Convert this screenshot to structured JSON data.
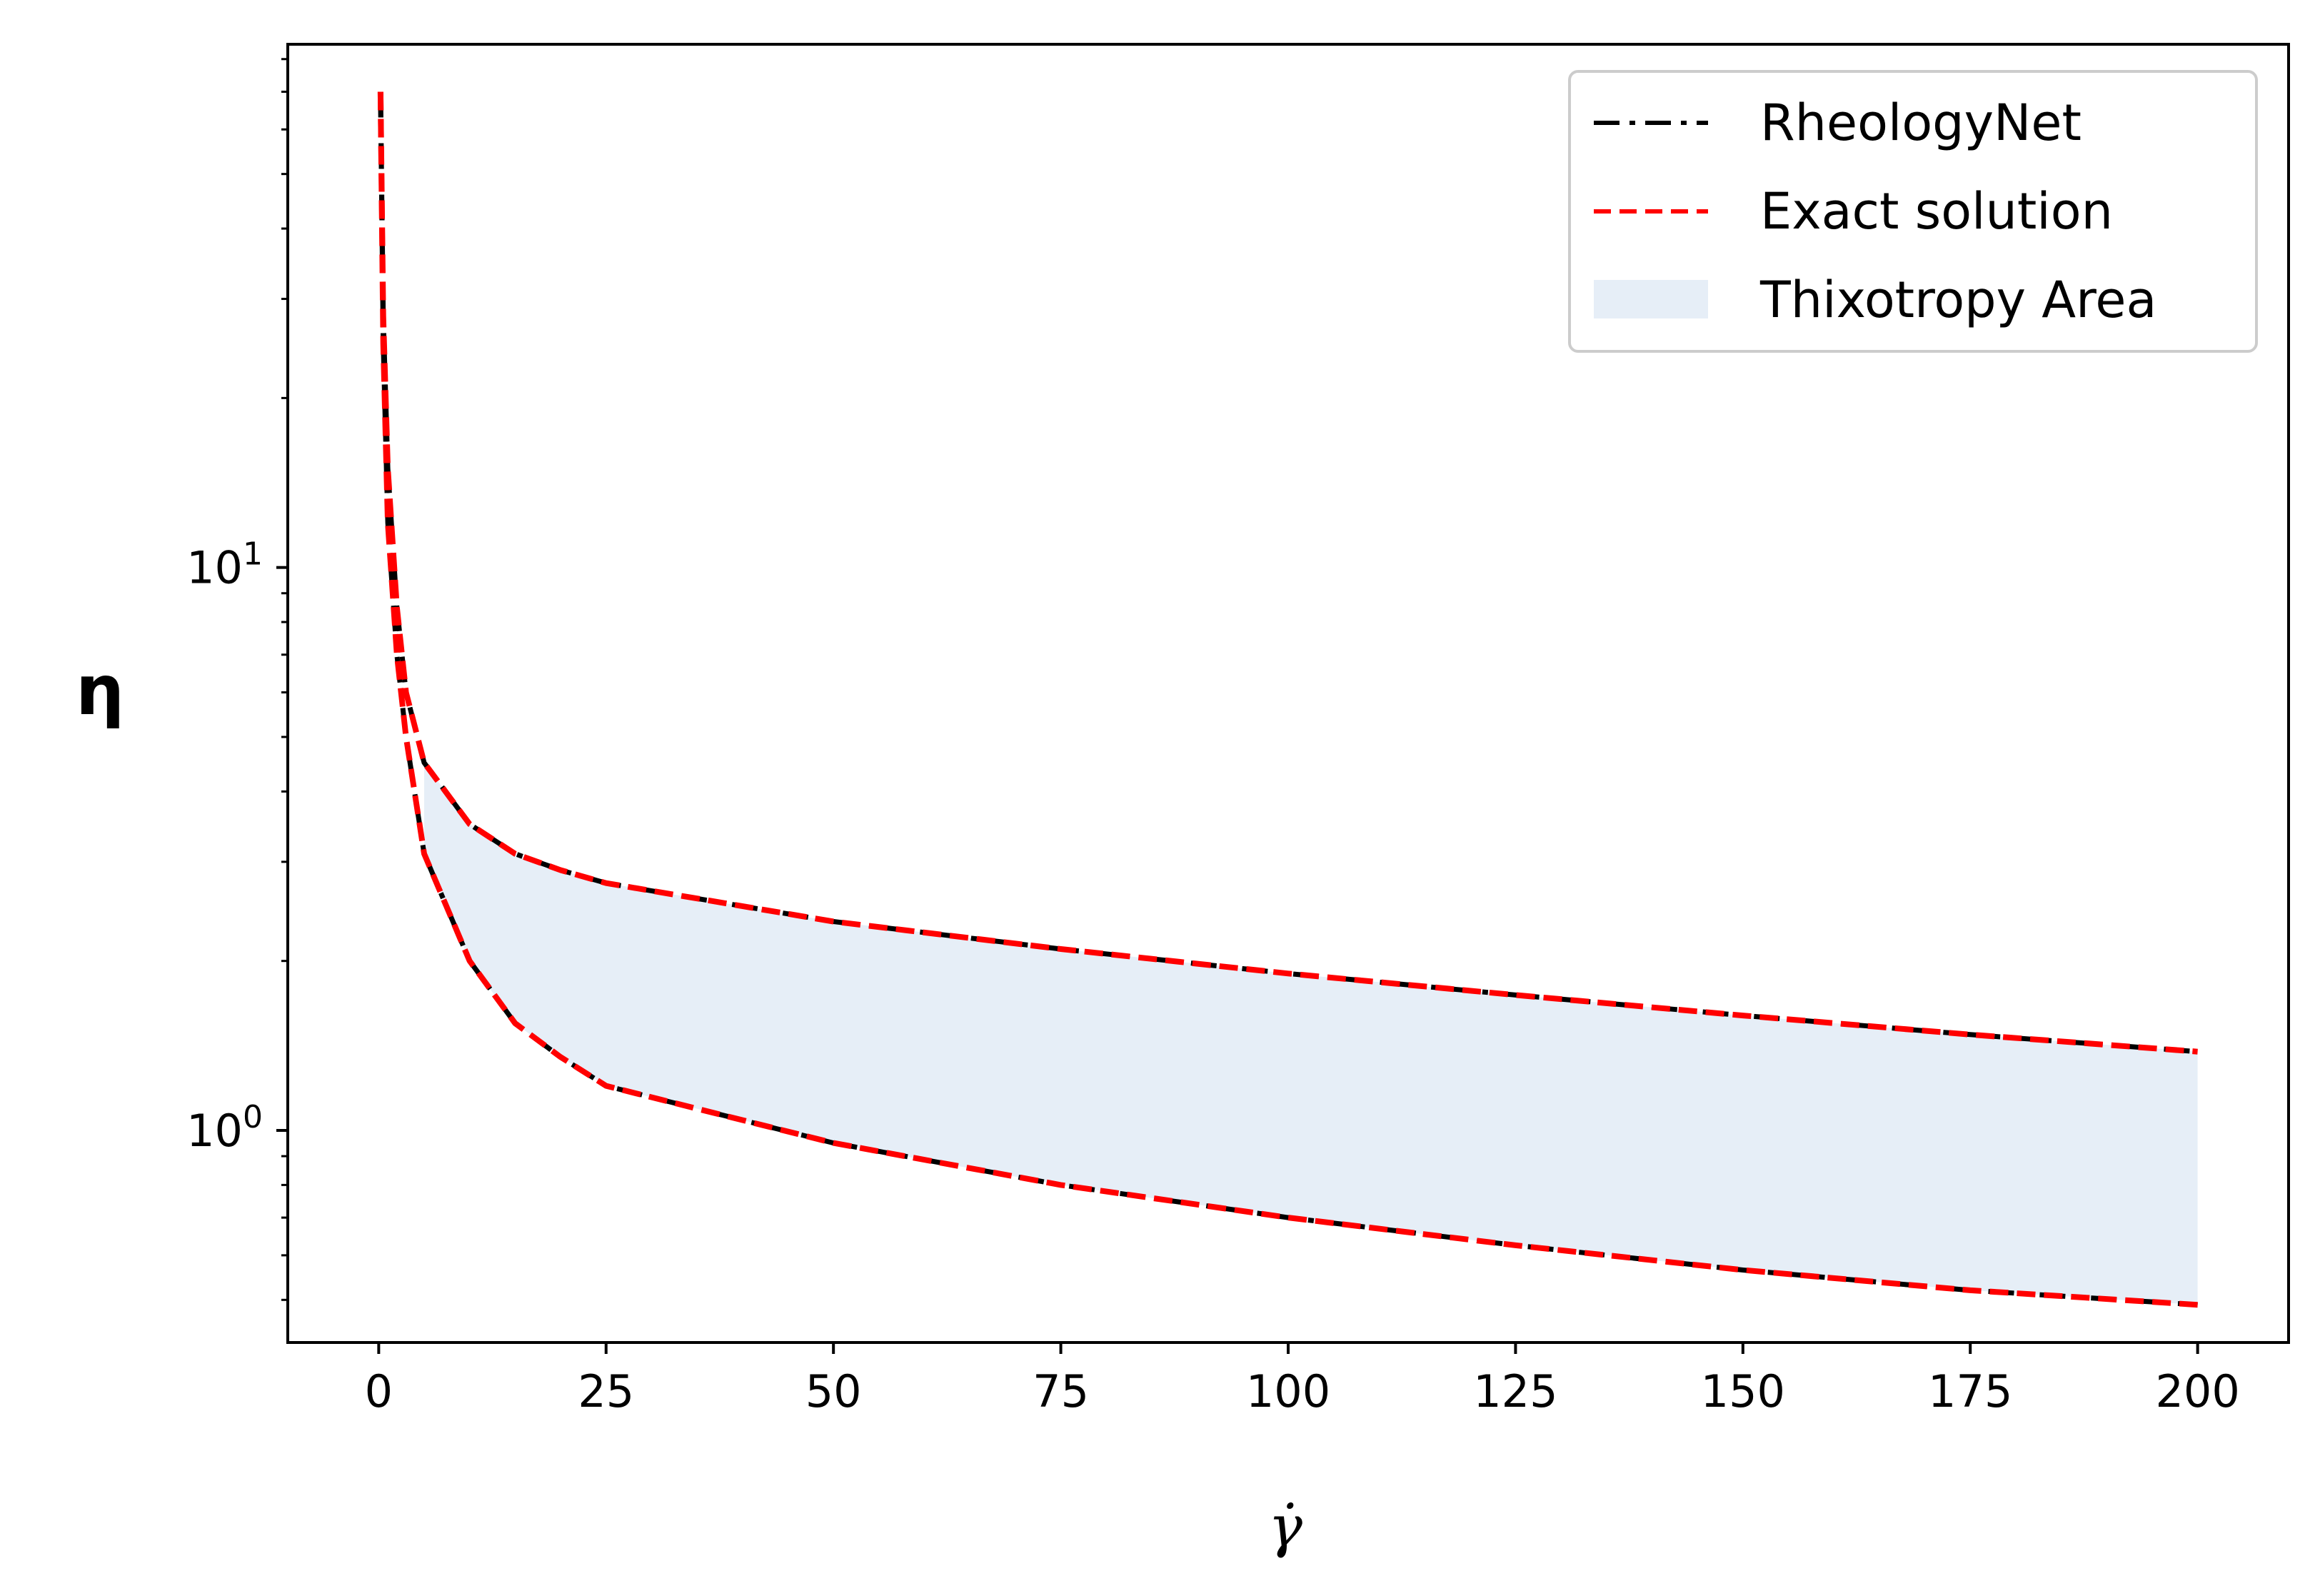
{
  "chart_data": {
    "type": "line",
    "title": "",
    "xlabel": "γ̇",
    "ylabel": "η",
    "x_scale": "linear",
    "y_scale": "log",
    "xlim": [
      -10,
      210
    ],
    "ylim": [
      0.42,
      85
    ],
    "x_ticks": [
      0,
      25,
      50,
      75,
      100,
      125,
      150,
      175,
      200
    ],
    "y_major_ticks": [
      {
        "value": 1,
        "base": "10",
        "exp": "0"
      },
      {
        "value": 10,
        "base": "10",
        "exp": "1"
      }
    ],
    "grid": false,
    "legend_position": "upper-right",
    "legend": [
      {
        "label": "RheologyNet",
        "style": "dash-dot",
        "color": "#000000"
      },
      {
        "label": "Exact solution",
        "style": "dashed",
        "color": "#ff0000"
      },
      {
        "label": "Thixotropy Area",
        "style": "fill",
        "color": "#e6eef7"
      }
    ],
    "series": [
      {
        "name": "RheologyNet",
        "style": "dash-dot",
        "color": "#000000",
        "branches": {
          "upper": {
            "x": [
              0.2,
              0.5,
              1,
              2,
              3,
              5,
              10,
              15,
              20,
              25,
              50,
              75,
              100,
              125,
              150,
              175,
              200
            ],
            "y": [
              70,
              28,
              15,
              8.5,
              6.0,
              4.5,
              3.5,
              3.1,
              2.9,
              2.75,
              2.35,
              2.1,
              1.9,
              1.74,
              1.6,
              1.48,
              1.38
            ]
          },
          "lower": {
            "x": [
              0.2,
              0.5,
              1,
              2,
              3,
              5,
              10,
              15,
              20,
              25,
              50,
              75,
              100,
              125,
              150,
              175,
              200
            ],
            "y": [
              70,
              25,
              12,
              7.0,
              5.0,
              3.1,
              2.0,
              1.55,
              1.35,
              1.2,
              0.95,
              0.8,
              0.7,
              0.625,
              0.565,
              0.52,
              0.49
            ]
          }
        }
      },
      {
        "name": "Exact solution",
        "style": "dashed",
        "color": "#ff0000",
        "branches": {
          "upper": {
            "x": [
              0.2,
              0.5,
              1,
              2,
              3,
              5,
              10,
              15,
              20,
              25,
              50,
              75,
              100,
              125,
              150,
              175,
              200
            ],
            "y": [
              70,
              28,
              15,
              8.5,
              6.0,
              4.5,
              3.5,
              3.1,
              2.9,
              2.75,
              2.35,
              2.1,
              1.9,
              1.74,
              1.6,
              1.48,
              1.38
            ]
          },
          "lower": {
            "x": [
              0.2,
              0.5,
              1,
              2,
              3,
              5,
              10,
              15,
              20,
              25,
              50,
              75,
              100,
              125,
              150,
              175,
              200
            ],
            "y": [
              70,
              25,
              12,
              7.0,
              5.0,
              3.1,
              2.0,
              1.55,
              1.35,
              1.2,
              0.95,
              0.8,
              0.7,
              0.625,
              0.565,
              0.52,
              0.49
            ]
          }
        }
      }
    ],
    "fill_between": {
      "name": "Thixotropy Area",
      "color": "#e6eef7",
      "x": [
        5,
        10,
        15,
        20,
        25,
        50,
        75,
        100,
        125,
        150,
        175,
        200
      ],
      "upper": [
        4.5,
        3.5,
        3.1,
        2.9,
        2.75,
        2.35,
        2.1,
        1.9,
        1.74,
        1.6,
        1.48,
        1.38
      ],
      "lower": [
        3.1,
        2.0,
        1.55,
        1.35,
        1.2,
        0.95,
        0.8,
        0.7,
        0.625,
        0.565,
        0.52,
        0.49
      ]
    }
  }
}
